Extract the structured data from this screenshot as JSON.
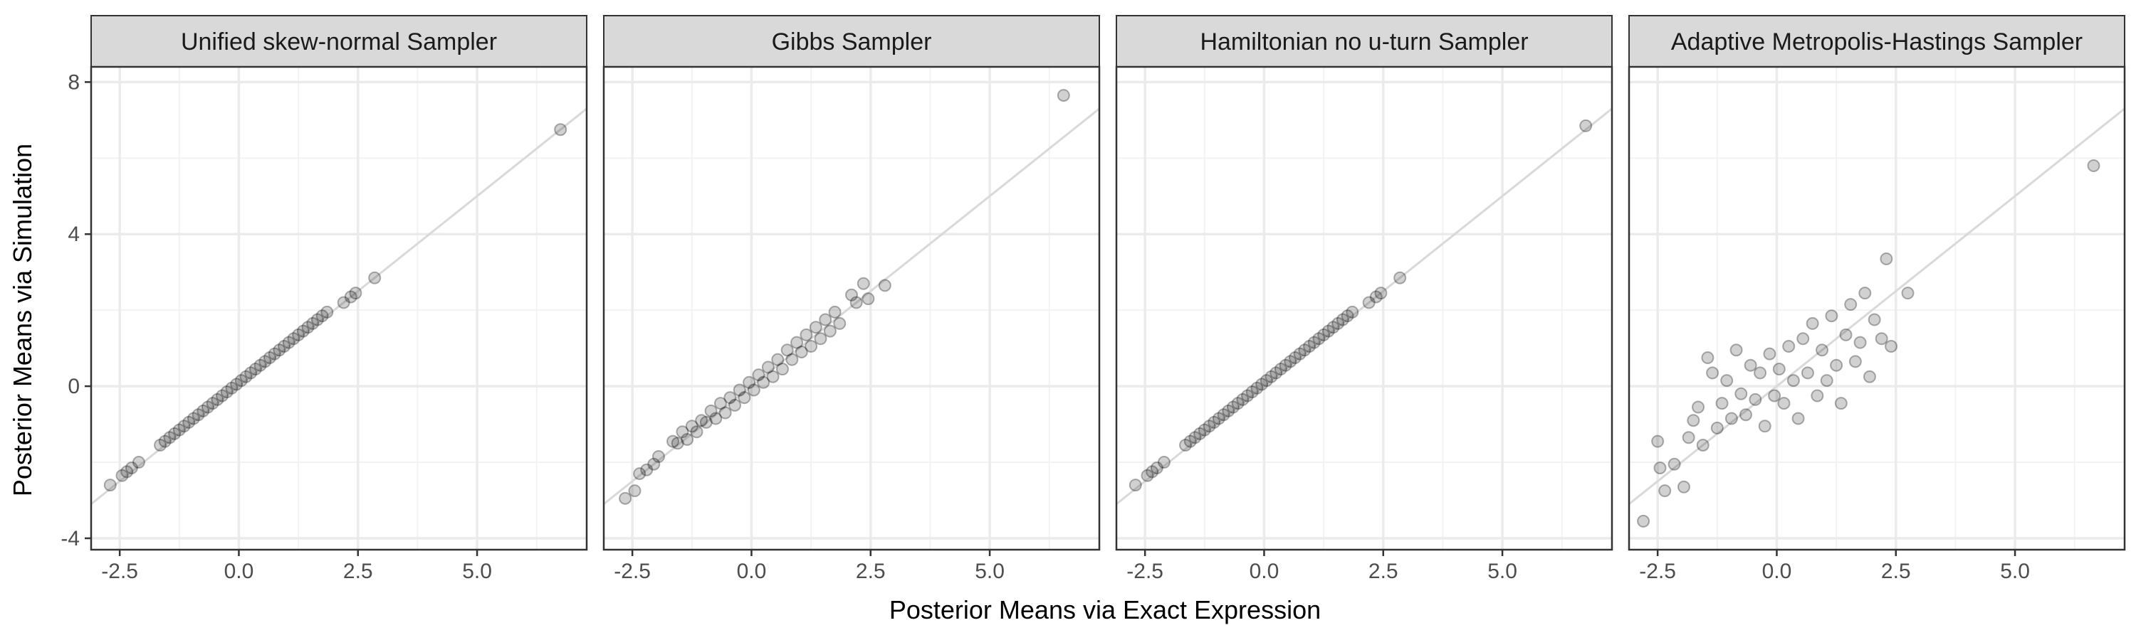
{
  "chart_data": {
    "type": "scatter",
    "facet_layout": "1 row x 4 columns",
    "xlabel": "Posterior Means via Exact Expression",
    "ylabel": "Posterior Means via Simulation",
    "xlim": [
      -3.1,
      7.3
    ],
    "ylim": [
      -4.3,
      8.4
    ],
    "xticks": [
      -2.5,
      0.0,
      2.5,
      5.0
    ],
    "xtick_labels": [
      "-2.5",
      "0.0",
      "2.5",
      "5.0"
    ],
    "yticks": [
      -4,
      0,
      4,
      8
    ],
    "ytick_labels": [
      "-4",
      "0",
      "4",
      "8"
    ],
    "grid": true,
    "reference_line": {
      "type": "identity",
      "slope": 1,
      "intercept": 0,
      "color": "#d9d9d9"
    },
    "point_style": {
      "color": "#000000",
      "opacity": 0.18,
      "stroke_opacity": 0.3
    },
    "colors": {
      "panel_border": "#333333",
      "strip_background": "#d9d9d9",
      "grid_major": "#ebebeb",
      "grid_minor": "#f2f2f2",
      "tick_text": "#4d4d4d"
    },
    "panels": [
      {
        "title": "Unified skew-normal Sampler",
        "points": [
          [
            -2.7,
            -2.6
          ],
          [
            -2.45,
            -2.35
          ],
          [
            -2.35,
            -2.25
          ],
          [
            -2.25,
            -2.15
          ],
          [
            -2.1,
            -2.0
          ],
          [
            -1.65,
            -1.55
          ],
          [
            -1.55,
            -1.45
          ],
          [
            -1.45,
            -1.35
          ],
          [
            -1.35,
            -1.25
          ],
          [
            -1.25,
            -1.15
          ],
          [
            -1.15,
            -1.05
          ],
          [
            -1.05,
            -0.95
          ],
          [
            -0.95,
            -0.85
          ],
          [
            -0.85,
            -0.75
          ],
          [
            -0.75,
            -0.65
          ],
          [
            -0.65,
            -0.55
          ],
          [
            -0.55,
            -0.45
          ],
          [
            -0.45,
            -0.35
          ],
          [
            -0.35,
            -0.25
          ],
          [
            -0.25,
            -0.15
          ],
          [
            -0.15,
            -0.05
          ],
          [
            -0.05,
            0.05
          ],
          [
            0.05,
            0.15
          ],
          [
            0.15,
            0.25
          ],
          [
            0.25,
            0.35
          ],
          [
            0.35,
            0.45
          ],
          [
            0.45,
            0.55
          ],
          [
            0.55,
            0.65
          ],
          [
            0.65,
            0.75
          ],
          [
            0.75,
            0.85
          ],
          [
            0.85,
            0.95
          ],
          [
            0.95,
            1.05
          ],
          [
            1.05,
            1.15
          ],
          [
            1.15,
            1.25
          ],
          [
            1.25,
            1.35
          ],
          [
            1.35,
            1.45
          ],
          [
            1.45,
            1.55
          ],
          [
            1.55,
            1.65
          ],
          [
            1.65,
            1.75
          ],
          [
            1.75,
            1.85
          ],
          [
            1.85,
            1.95
          ],
          [
            2.2,
            2.2
          ],
          [
            2.35,
            2.35
          ],
          [
            2.45,
            2.45
          ],
          [
            2.85,
            2.85
          ],
          [
            6.75,
            6.75
          ]
        ]
      },
      {
        "title": "Gibbs Sampler",
        "points": [
          [
            -2.65,
            -2.95
          ],
          [
            -2.45,
            -2.75
          ],
          [
            -2.35,
            -2.3
          ],
          [
            -2.2,
            -2.2
          ],
          [
            -2.05,
            -2.05
          ],
          [
            -1.95,
            -1.85
          ],
          [
            -1.65,
            -1.45
          ],
          [
            -1.55,
            -1.5
          ],
          [
            -1.45,
            -1.2
          ],
          [
            -1.35,
            -1.4
          ],
          [
            -1.25,
            -1.05
          ],
          [
            -1.15,
            -1.2
          ],
          [
            -1.05,
            -0.9
          ],
          [
            -0.95,
            -0.95
          ],
          [
            -0.85,
            -0.65
          ],
          [
            -0.75,
            -0.85
          ],
          [
            -0.65,
            -0.45
          ],
          [
            -0.55,
            -0.7
          ],
          [
            -0.45,
            -0.3
          ],
          [
            -0.35,
            -0.5
          ],
          [
            -0.25,
            -0.1
          ],
          [
            -0.15,
            -0.3
          ],
          [
            -0.05,
            0.1
          ],
          [
            0.05,
            -0.1
          ],
          [
            0.15,
            0.3
          ],
          [
            0.25,
            0.1
          ],
          [
            0.35,
            0.5
          ],
          [
            0.45,
            0.25
          ],
          [
            0.55,
            0.7
          ],
          [
            0.65,
            0.45
          ],
          [
            0.75,
            0.95
          ],
          [
            0.85,
            0.7
          ],
          [
            0.95,
            1.15
          ],
          [
            1.05,
            0.9
          ],
          [
            1.15,
            1.35
          ],
          [
            1.25,
            1.05
          ],
          [
            1.35,
            1.55
          ],
          [
            1.45,
            1.25
          ],
          [
            1.55,
            1.75
          ],
          [
            1.65,
            1.45
          ],
          [
            1.75,
            1.95
          ],
          [
            1.85,
            1.65
          ],
          [
            2.1,
            2.4
          ],
          [
            2.2,
            2.2
          ],
          [
            2.35,
            2.7
          ],
          [
            2.45,
            2.3
          ],
          [
            2.8,
            2.65
          ],
          [
            6.55,
            7.65
          ]
        ]
      },
      {
        "title": "Hamiltonian no u-turn Sampler",
        "points": [
          [
            -2.7,
            -2.6
          ],
          [
            -2.45,
            -2.35
          ],
          [
            -2.35,
            -2.25
          ],
          [
            -2.25,
            -2.15
          ],
          [
            -2.1,
            -2.0
          ],
          [
            -1.65,
            -1.55
          ],
          [
            -1.55,
            -1.45
          ],
          [
            -1.45,
            -1.35
          ],
          [
            -1.35,
            -1.25
          ],
          [
            -1.25,
            -1.15
          ],
          [
            -1.15,
            -1.05
          ],
          [
            -1.05,
            -0.95
          ],
          [
            -0.95,
            -0.85
          ],
          [
            -0.85,
            -0.75
          ],
          [
            -0.75,
            -0.65
          ],
          [
            -0.65,
            -0.55
          ],
          [
            -0.55,
            -0.45
          ],
          [
            -0.45,
            -0.35
          ],
          [
            -0.35,
            -0.25
          ],
          [
            -0.25,
            -0.15
          ],
          [
            -0.15,
            -0.05
          ],
          [
            -0.05,
            0.05
          ],
          [
            0.05,
            0.15
          ],
          [
            0.15,
            0.25
          ],
          [
            0.25,
            0.35
          ],
          [
            0.35,
            0.45
          ],
          [
            0.45,
            0.55
          ],
          [
            0.55,
            0.65
          ],
          [
            0.65,
            0.75
          ],
          [
            0.75,
            0.85
          ],
          [
            0.85,
            0.95
          ],
          [
            0.95,
            1.05
          ],
          [
            1.05,
            1.15
          ],
          [
            1.15,
            1.25
          ],
          [
            1.25,
            1.35
          ],
          [
            1.35,
            1.45
          ],
          [
            1.45,
            1.55
          ],
          [
            1.55,
            1.65
          ],
          [
            1.65,
            1.75
          ],
          [
            1.75,
            1.85
          ],
          [
            1.85,
            1.95
          ],
          [
            2.2,
            2.2
          ],
          [
            2.35,
            2.35
          ],
          [
            2.45,
            2.45
          ],
          [
            2.85,
            2.85
          ],
          [
            6.75,
            6.85
          ]
        ]
      },
      {
        "title": "Adaptive Metropolis-Hastings Sampler",
        "points": [
          [
            -2.8,
            -3.55
          ],
          [
            -2.5,
            -1.45
          ],
          [
            -2.45,
            -2.15
          ],
          [
            -2.35,
            -2.75
          ],
          [
            -2.15,
            -2.05
          ],
          [
            -1.95,
            -2.65
          ],
          [
            -1.85,
            -1.35
          ],
          [
            -1.75,
            -0.9
          ],
          [
            -1.65,
            -0.55
          ],
          [
            -1.55,
            -1.55
          ],
          [
            -1.45,
            0.75
          ],
          [
            -1.35,
            0.35
          ],
          [
            -1.25,
            -1.1
          ],
          [
            -1.15,
            -0.45
          ],
          [
            -1.05,
            0.15
          ],
          [
            -0.95,
            -0.85
          ],
          [
            -0.85,
            0.95
          ],
          [
            -0.75,
            -0.2
          ],
          [
            -0.65,
            -0.75
          ],
          [
            -0.55,
            0.55
          ],
          [
            -0.45,
            -0.35
          ],
          [
            -0.35,
            0.35
          ],
          [
            -0.25,
            -1.05
          ],
          [
            -0.15,
            0.85
          ],
          [
            -0.05,
            -0.25
          ],
          [
            0.05,
            0.45
          ],
          [
            0.15,
            -0.45
          ],
          [
            0.25,
            1.05
          ],
          [
            0.35,
            0.15
          ],
          [
            0.45,
            -0.85
          ],
          [
            0.55,
            1.25
          ],
          [
            0.65,
            0.35
          ],
          [
            0.75,
            1.65
          ],
          [
            0.85,
            -0.25
          ],
          [
            0.95,
            0.95
          ],
          [
            1.05,
            0.15
          ],
          [
            1.15,
            1.85
          ],
          [
            1.25,
            0.55
          ],
          [
            1.35,
            -0.45
          ],
          [
            1.45,
            1.35
          ],
          [
            1.55,
            2.15
          ],
          [
            1.65,
            0.65
          ],
          [
            1.75,
            1.15
          ],
          [
            1.85,
            2.45
          ],
          [
            1.95,
            0.25
          ],
          [
            2.05,
            1.75
          ],
          [
            2.2,
            1.25
          ],
          [
            2.3,
            3.35
          ],
          [
            2.4,
            1.05
          ],
          [
            2.75,
            2.45
          ],
          [
            6.65,
            5.8
          ]
        ]
      }
    ]
  }
}
